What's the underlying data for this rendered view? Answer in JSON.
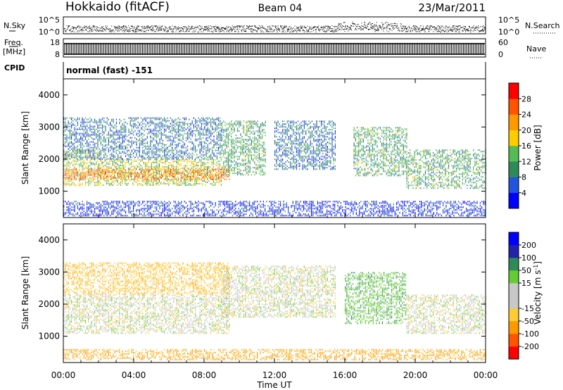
{
  "header": {
    "station": "Hokkaido (fitACF)",
    "beam": "Beam 04",
    "date": "23/Mar/2011"
  },
  "noise_panel": {
    "left_label": "N.Sky",
    "right_label": "N.Search",
    "left_ticks": [
      "10^5",
      "10^0"
    ],
    "right_ticks": [
      "10^5",
      "10^0"
    ]
  },
  "freq_panel": {
    "left_label_line1": "Freq.",
    "left_label_line2": "[MHz]",
    "right_label": "Nave",
    "left_ticks": [
      "18",
      "8"
    ],
    "right_ticks": [
      "60",
      "0"
    ]
  },
  "cpid": {
    "label": "CPID",
    "value": "normal (fast) -151"
  },
  "colors": {
    "power": [
      "#0000ff",
      "#2255dd",
      "#2e8b57",
      "#55bb55",
      "#ffcc00",
      "#ff9900",
      "#ff5500",
      "#ff0000"
    ],
    "velocity": [
      "#ff0000",
      "#ff5500",
      "#ff9900",
      "#ffcc33",
      "#c8c8c8",
      "#c8c8c8",
      "#66cc33",
      "#2e8b57",
      "#2222aa",
      "#0000ff"
    ]
  },
  "chart_data": [
    {
      "type": "heatmap",
      "name": "power",
      "xlabel": "Time UT",
      "ylabel": "Slant Range [km]",
      "xlim": [
        0,
        24
      ],
      "ylim": [
        180,
        4500
      ],
      "x_ticks": [
        0,
        4,
        8,
        12,
        16,
        20,
        24
      ],
      "x_tick_labels": [
        "00:00",
        "04:00",
        "08:00",
        "12:00",
        "16:00",
        "20:00",
        "00:00"
      ],
      "y_ticks": [
        1000,
        2000,
        3000,
        4000
      ],
      "y_tick_labels": [
        "1000",
        "2000",
        "3000",
        "4000"
      ],
      "colorbar": {
        "label": "Power [dB]",
        "min": 0,
        "max": 32,
        "ticks": [
          "4",
          "8",
          "12",
          "16",
          "20",
          "24",
          "28"
        ]
      },
      "regions": [
        {
          "time": [
            0.0,
            2.0
          ],
          "range": [
            1200,
            2300
          ],
          "level": 16
        },
        {
          "time": [
            2.0,
            9.0
          ],
          "range": [
            1200,
            2000
          ],
          "level": 16
        },
        {
          "time": [
            0.0,
            9.5
          ],
          "range": [
            1350,
            1700
          ],
          "level": 24
        },
        {
          "time": [
            0.0,
            9.0
          ],
          "range": [
            2000,
            3300
          ],
          "level": 8
        },
        {
          "time": [
            9.0,
            11.5
          ],
          "range": [
            1500,
            3200
          ],
          "level": 12
        },
        {
          "time": [
            12.0,
            15.5
          ],
          "range": [
            1700,
            3200
          ],
          "level": 8
        },
        {
          "time": [
            16.5,
            19.5
          ],
          "range": [
            1500,
            3000
          ],
          "level": 12
        },
        {
          "time": [
            19.5,
            24.0
          ],
          "range": [
            1100,
            2300
          ],
          "level": 12
        },
        {
          "time": [
            0.0,
            24.0
          ],
          "range": [
            250,
            700
          ],
          "level": 4
        }
      ]
    },
    {
      "type": "heatmap",
      "name": "velocity",
      "xlabel": "Time UT",
      "ylabel": "Slant Range [km]",
      "xlim": [
        0,
        24
      ],
      "ylim": [
        180,
        4500
      ],
      "x_ticks": [
        0,
        4,
        8,
        12,
        16,
        20,
        24
      ],
      "x_tick_labels": [
        "00:00",
        "04:00",
        "08:00",
        "12:00",
        "16:00",
        "20:00",
        "00:00"
      ],
      "y_ticks": [
        1000,
        2000,
        3000,
        4000
      ],
      "y_tick_labels": [
        "1000",
        "2000",
        "3000",
        "4000"
      ],
      "colorbar": {
        "label": "Velocity [m s",
        "unit_exponent": "-1",
        "unit_close": "]",
        "ticks": [
          "-200",
          "-100",
          "-50",
          "-15",
          "15",
          "50",
          "100",
          "200"
        ]
      },
      "regions": [
        {
          "time": [
            0.0,
            9.5
          ],
          "range": [
            1100,
            2300
          ],
          "velocity": 0
        },
        {
          "time": [
            0.0,
            9.5
          ],
          "range": [
            2300,
            3300
          ],
          "velocity": -40
        },
        {
          "time": [
            9.0,
            15.5
          ],
          "range": [
            1600,
            3200
          ],
          "velocity": 0
        },
        {
          "time": [
            16.0,
            19.5
          ],
          "range": [
            1400,
            3000
          ],
          "velocity": 40
        },
        {
          "time": [
            19.5,
            24.0
          ],
          "range": [
            1100,
            2300
          ],
          "velocity": 0
        },
        {
          "time": [
            0.0,
            24.0
          ],
          "range": [
            250,
            600
          ],
          "velocity": -60
        }
      ]
    }
  ]
}
